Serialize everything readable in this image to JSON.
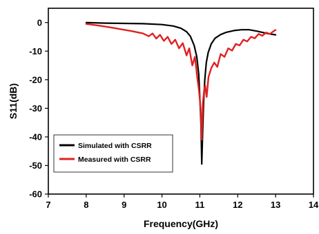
{
  "chart_data": {
    "type": "line",
    "title": "",
    "xlabel": "Frequency(GHz)",
    "ylabel": "S11(dB)",
    "xlim": [
      7,
      14
    ],
    "ylim": [
      -60,
      5
    ],
    "xticks": [
      7,
      8,
      9,
      10,
      11,
      12,
      13,
      14
    ],
    "yticks": [
      0,
      -10,
      -20,
      -30,
      -40,
      -50,
      -60
    ],
    "grid": false,
    "legend_position": "bottom-left",
    "series": [
      {
        "name": "Simulated with CSRR",
        "color": "#000000",
        "x": [
          8.0,
          8.5,
          9.0,
          9.5,
          10.0,
          10.3,
          10.5,
          10.65,
          10.75,
          10.85,
          10.92,
          10.97,
          11.0,
          11.03,
          11.05,
          11.07,
          11.1,
          11.13,
          11.17,
          11.22,
          11.3,
          11.4,
          11.55,
          11.7,
          11.9,
          12.1,
          12.3,
          12.5,
          12.7,
          12.85,
          13.0
        ],
        "y": [
          0.0,
          -0.2,
          -0.3,
          -0.4,
          -0.7,
          -1.2,
          -2.0,
          -3.2,
          -4.8,
          -8.0,
          -12.0,
          -18.0,
          -26.0,
          -36.0,
          -49.5,
          -40.0,
          -28.0,
          -20.0,
          -14.0,
          -10.5,
          -7.5,
          -5.5,
          -4.2,
          -3.4,
          -2.8,
          -2.5,
          -2.5,
          -3.0,
          -3.6,
          -4.0,
          -4.3
        ]
      },
      {
        "name": "Measured with CSRR",
        "color": "#e02020",
        "x": [
          8.0,
          8.3,
          8.6,
          8.9,
          9.2,
          9.5,
          9.65,
          9.75,
          9.85,
          9.95,
          10.05,
          10.15,
          10.25,
          10.35,
          10.45,
          10.55,
          10.65,
          10.72,
          10.8,
          10.87,
          10.93,
          10.98,
          11.02,
          11.05,
          11.08,
          11.11,
          11.14,
          11.18,
          11.23,
          11.3,
          11.38,
          11.46,
          11.55,
          11.65,
          11.75,
          11.85,
          11.95,
          12.05,
          12.15,
          12.25,
          12.35,
          12.45,
          12.55,
          12.65,
          12.75,
          12.85,
          12.95,
          13.0
        ],
        "y": [
          -0.5,
          -1.0,
          -1.6,
          -2.3,
          -3.0,
          -3.8,
          -4.8,
          -3.8,
          -5.6,
          -4.3,
          -6.4,
          -5.0,
          -7.5,
          -6.0,
          -9.0,
          -7.2,
          -11.5,
          -9.0,
          -15.0,
          -12.0,
          -19.0,
          -24.0,
          -30.0,
          -41.0,
          -28.0,
          -24.0,
          -22.0,
          -26.0,
          -19.0,
          -16.0,
          -14.0,
          -15.5,
          -11.0,
          -12.0,
          -9.0,
          -9.8,
          -7.5,
          -8.0,
          -6.0,
          -6.6,
          -5.0,
          -5.5,
          -4.0,
          -4.6,
          -3.5,
          -4.0,
          -3.0,
          -2.6
        ]
      }
    ]
  }
}
